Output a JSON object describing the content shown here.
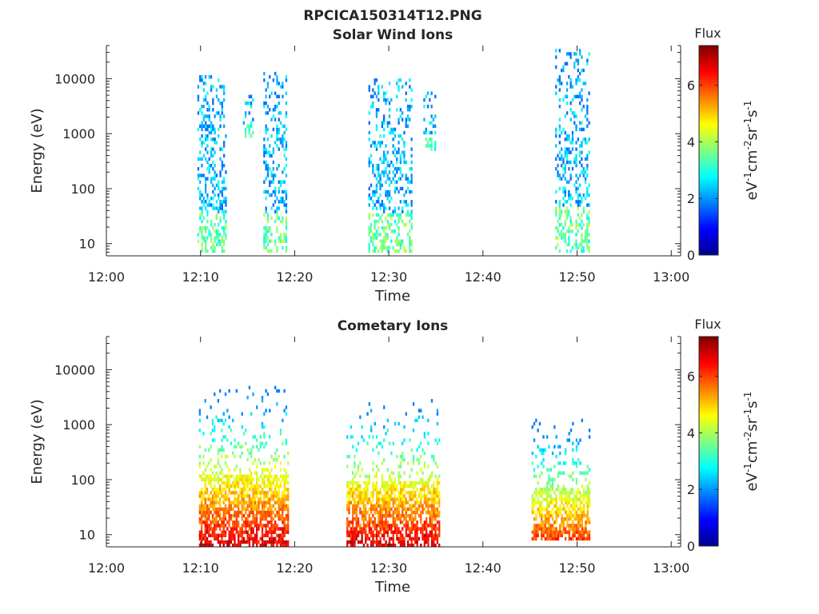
{
  "figure": {
    "suptitle": "RPCICA150314T12.PNG"
  },
  "colors": {
    "colormap": [
      "#00008f",
      "#0000ff",
      "#0080ff",
      "#00ffff",
      "#80ff80",
      "#ffff00",
      "#ff8000",
      "#ff0000",
      "#800000"
    ]
  },
  "chart_data": [
    {
      "type": "heatmap",
      "title": "Solar Wind Ions",
      "xlabel": "Time",
      "ylabel": "Energy (eV)",
      "x_scale": "time",
      "y_scale": "log",
      "xlim": [
        "12:00",
        "13:01"
      ],
      "ylim": [
        6,
        40000
      ],
      "xticks": [
        "12:00",
        "12:10",
        "12:20",
        "12:30",
        "12:40",
        "12:50",
        "13:00"
      ],
      "yticks": [
        "10",
        "100",
        "1000",
        "10000"
      ],
      "colorbar": {
        "label": "Flux",
        "unit": "eV-1cm-2sr-1s-1",
        "range": [
          0,
          7.4
        ],
        "ticks": [
          "0",
          "2",
          "4",
          "6"
        ]
      },
      "bursts": [
        {
          "start": "12:09:40",
          "end": "12:12:40",
          "min_energy": 7,
          "max_energy": 12000,
          "peak_flux": 4.5
        },
        {
          "start": "12:14:30",
          "end": "12:15:30",
          "min_energy": 900,
          "max_energy": 7000,
          "peak_flux": 3.5
        },
        {
          "start": "12:16:40",
          "end": "12:19:10",
          "min_energy": 7,
          "max_energy": 14000,
          "peak_flux": 4.6
        },
        {
          "start": "12:27:50",
          "end": "12:32:20",
          "min_energy": 7,
          "max_energy": 10000,
          "peak_flux": 4.8
        },
        {
          "start": "12:33:40",
          "end": "12:35:00",
          "min_energy": 500,
          "max_energy": 7000,
          "peak_flux": 3.5
        },
        {
          "start": "12:47:40",
          "end": "12:51:20",
          "min_energy": 7,
          "max_energy": 34000,
          "peak_flux": 4.5
        }
      ]
    },
    {
      "type": "heatmap",
      "title": "Cometary Ions",
      "xlabel": "Time",
      "ylabel": "Energy (eV)",
      "x_scale": "time",
      "y_scale": "log",
      "xlim": [
        "12:00",
        "13:01"
      ],
      "ylim": [
        6,
        40000
      ],
      "xticks": [
        "12:00",
        "12:10",
        "12:20",
        "12:30",
        "12:40",
        "12:50",
        "13:00"
      ],
      "yticks": [
        "10",
        "100",
        "1000",
        "10000"
      ],
      "colorbar": {
        "label": "Flux",
        "unit": "eV-1cm-2sr-1s-1",
        "range": [
          0,
          7.4
        ],
        "ticks": [
          "0",
          "2",
          "4",
          "6"
        ]
      },
      "bursts": [
        {
          "start": "12:09:50",
          "end": "12:19:20",
          "min_energy": 6,
          "max_energy": 5000,
          "peak_flux": 7.2
        },
        {
          "start": "12:25:30",
          "end": "12:35:20",
          "min_energy": 6,
          "max_energy": 3000,
          "peak_flux": 7.2
        },
        {
          "start": "12:45:10",
          "end": "12:51:20",
          "min_energy": 8,
          "max_energy": 1200,
          "peak_flux": 6.5
        }
      ]
    }
  ]
}
